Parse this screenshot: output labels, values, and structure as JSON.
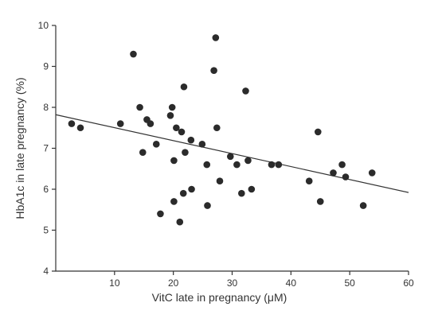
{
  "chart_data": {
    "type": "scatter",
    "xlabel": "VitC late in pregnancy (μM)",
    "ylabel": "HbA1c in late pregnancy (%)",
    "xlim": [
      0,
      60
    ],
    "ylim": [
      4,
      10
    ],
    "xticks": [
      10,
      20,
      30,
      40,
      50,
      60
    ],
    "yticks": [
      4,
      5,
      6,
      7,
      8,
      9,
      10
    ],
    "grid": false,
    "points": [
      {
        "x": 2.7,
        "y": 7.6
      },
      {
        "x": 4.2,
        "y": 7.5
      },
      {
        "x": 11.0,
        "y": 7.6
      },
      {
        "x": 13.2,
        "y": 9.3
      },
      {
        "x": 14.3,
        "y": 8.0
      },
      {
        "x": 14.8,
        "y": 6.9
      },
      {
        "x": 15.5,
        "y": 7.7
      },
      {
        "x": 16.1,
        "y": 7.6
      },
      {
        "x": 17.1,
        "y": 7.1
      },
      {
        "x": 17.8,
        "y": 5.4
      },
      {
        "x": 19.5,
        "y": 7.8
      },
      {
        "x": 19.8,
        "y": 8.0
      },
      {
        "x": 20.1,
        "y": 6.7
      },
      {
        "x": 20.1,
        "y": 5.7
      },
      {
        "x": 20.5,
        "y": 7.5
      },
      {
        "x": 21.1,
        "y": 5.2
      },
      {
        "x": 21.4,
        "y": 7.4
      },
      {
        "x": 21.7,
        "y": 5.9
      },
      {
        "x": 21.8,
        "y": 8.5
      },
      {
        "x": 22.0,
        "y": 6.9
      },
      {
        "x": 23.0,
        "y": 7.2
      },
      {
        "x": 23.1,
        "y": 6.0
      },
      {
        "x": 24.9,
        "y": 7.1
      },
      {
        "x": 25.7,
        "y": 6.6
      },
      {
        "x": 25.8,
        "y": 5.6
      },
      {
        "x": 26.9,
        "y": 8.9
      },
      {
        "x": 27.2,
        "y": 9.7
      },
      {
        "x": 27.4,
        "y": 7.5
      },
      {
        "x": 27.9,
        "y": 6.2
      },
      {
        "x": 29.7,
        "y": 6.8
      },
      {
        "x": 30.8,
        "y": 6.6
      },
      {
        "x": 31.6,
        "y": 5.9
      },
      {
        "x": 32.3,
        "y": 8.4
      },
      {
        "x": 32.7,
        "y": 6.7
      },
      {
        "x": 33.3,
        "y": 6.0
      },
      {
        "x": 36.7,
        "y": 6.6
      },
      {
        "x": 37.9,
        "y": 6.6
      },
      {
        "x": 43.1,
        "y": 6.2
      },
      {
        "x": 44.6,
        "y": 7.4
      },
      {
        "x": 45.0,
        "y": 5.7
      },
      {
        "x": 47.2,
        "y": 6.4
      },
      {
        "x": 48.7,
        "y": 6.6
      },
      {
        "x": 49.3,
        "y": 6.3
      },
      {
        "x": 52.3,
        "y": 5.6
      },
      {
        "x": 53.8,
        "y": 6.4
      }
    ],
    "trendline": {
      "x": [
        0,
        60
      ],
      "y": [
        7.82,
        5.92
      ]
    }
  }
}
